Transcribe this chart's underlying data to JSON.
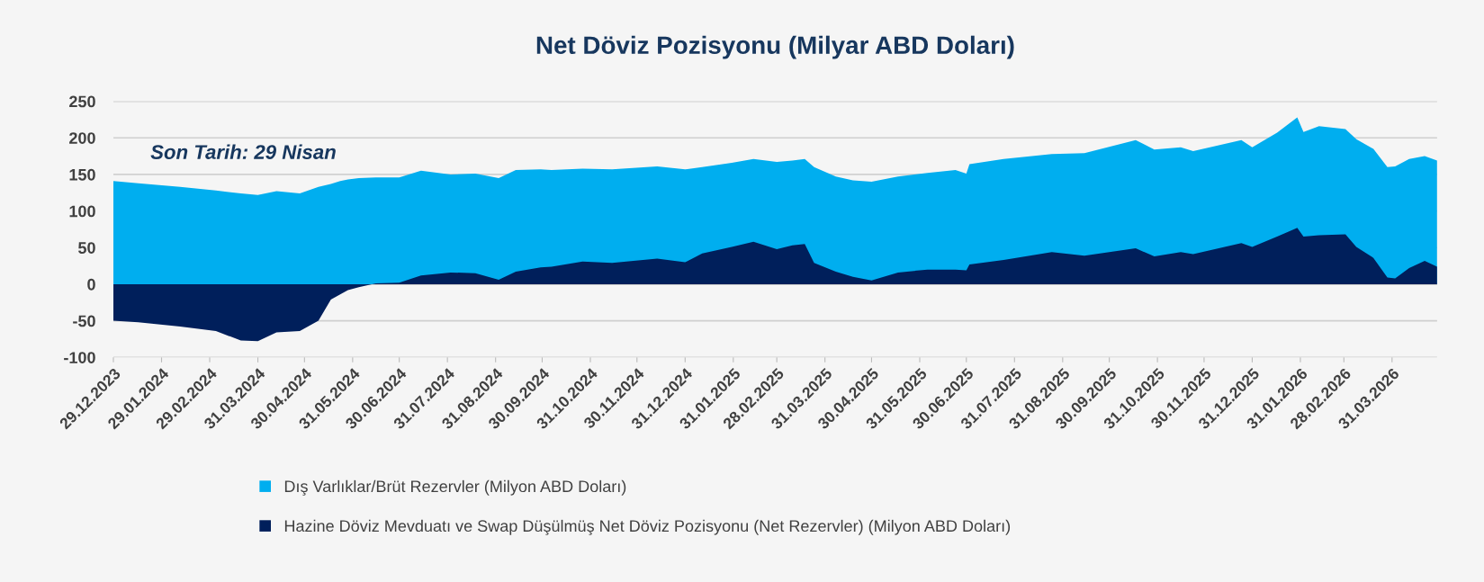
{
  "chart_data": {
    "type": "area",
    "title": "Net Döviz Pozisyonu (Milyar ABD Doları)",
    "annotations": [
      "Son Tarih: 29 Nisan"
    ],
    "x": [
      "2023-12-29",
      "2024-01-14",
      "2024-02-10",
      "2024-03-04",
      "2024-03-20",
      "2024-03-31",
      "2024-04-12",
      "2024-04-27",
      "2024-05-09",
      "2024-05-17",
      "2024-05-23",
      "2024-05-28",
      "2024-06-04",
      "2024-06-15",
      "2024-06-30",
      "2024-07-14",
      "2024-08-02",
      "2024-08-18",
      "2024-09-02",
      "2024-09-13",
      "2024-09-29",
      "2024-10-06",
      "2024-10-26",
      "2024-11-14",
      "2024-12-13",
      "2024-12-31",
      "2025-01-11",
      "2025-01-30",
      "2025-02-13",
      "2025-02-28",
      "2025-03-10",
      "2025-03-18",
      "2025-03-24",
      "2025-04-07",
      "2025-04-18",
      "2025-04-30",
      "2025-05-17",
      "2025-06-05",
      "2025-06-23",
      "2025-06-30",
      "2025-07-02",
      "2025-07-24",
      "2025-08-24",
      "2025-09-14",
      "2025-10-17",
      "2025-10-29",
      "2025-11-15",
      "2025-11-23",
      "2025-12-24",
      "2025-12-31",
      "2026-01-16",
      "2026-01-29",
      "2026-02-02",
      "2026-02-12",
      "2026-03-01",
      "2026-03-08",
      "2026-03-19",
      "2026-03-28",
      "2026-04-02",
      "2026-04-11",
      "2026-04-21",
      "2026-04-29"
    ],
    "series": [
      {
        "name": "Dış Varlıklar/Brüt Rezervler (Milyon ABD Doları)",
        "color": "#00aeef",
        "values": [
          141,
          138,
          133,
          128,
          124,
          122,
          127,
          124,
          133,
          137,
          141,
          143,
          145,
          146,
          146,
          155,
          150,
          151,
          145,
          156,
          157,
          156,
          158,
          157,
          161,
          157,
          160,
          166,
          171,
          167,
          169,
          171,
          160,
          147,
          142,
          140,
          147,
          152,
          156,
          151,
          164,
          171,
          178,
          179,
          197,
          184,
          187,
          182,
          197,
          187,
          207,
          228,
          208,
          216,
          212,
          198,
          185,
          160,
          161,
          171,
          175,
          169
        ]
      },
      {
        "name": "Hazine Döviz Mevduatı ve Swap Düşülmüş Net Döviz Pozisyonu (Net Rezervler) (Milyon ABD Doları)",
        "color": "#001f5b",
        "values": [
          -50,
          -52,
          -58,
          -64,
          -77,
          -78,
          -66,
          -64,
          -50,
          -21,
          -14,
          -8,
          -4,
          1,
          2,
          12,
          16,
          15,
          6,
          17,
          23,
          24,
          31,
          29,
          35,
          30,
          42,
          51,
          58,
          48,
          53,
          55,
          29,
          17,
          10,
          5,
          16,
          20,
          20,
          19,
          27,
          33,
          44,
          39,
          49,
          38,
          44,
          41,
          56,
          51,
          65,
          77,
          65,
          67,
          68,
          51,
          36,
          9,
          8,
          22,
          32,
          24
        ]
      }
    ],
    "xlim": [
      "2023-12-29",
      "2026-04-29"
    ],
    "xticks": [
      {
        "value": "2023-12-29",
        "label": "29.12.2023"
      },
      {
        "value": "2024-01-29",
        "label": "29.01.2024"
      },
      {
        "value": "2024-02-29",
        "label": "29.02.2024"
      },
      {
        "value": "2024-03-31",
        "label": "31.03.2024"
      },
      {
        "value": "2024-04-30",
        "label": "30.04.2024"
      },
      {
        "value": "2024-05-31",
        "label": "31.05.2024"
      },
      {
        "value": "2024-06-30",
        "label": "30.06.2024"
      },
      {
        "value": "2024-07-31",
        "label": "31.07.2024"
      },
      {
        "value": "2024-08-31",
        "label": "31.08.2024"
      },
      {
        "value": "2024-09-30",
        "label": "30.09.2024"
      },
      {
        "value": "2024-10-31",
        "label": "31.10.2024"
      },
      {
        "value": "2024-11-30",
        "label": "30.11.2024"
      },
      {
        "value": "2024-12-31",
        "label": "31.12.2024"
      },
      {
        "value": "2025-01-31",
        "label": "31.01.2025"
      },
      {
        "value": "2025-02-28",
        "label": "28.02.2025"
      },
      {
        "value": "2025-03-31",
        "label": "31.03.2025"
      },
      {
        "value": "2025-04-30",
        "label": "30.04.2025"
      },
      {
        "value": "2025-05-31",
        "label": "31.05.2025"
      },
      {
        "value": "2025-06-30",
        "label": "30.06.2025"
      },
      {
        "value": "2025-07-31",
        "label": "31.07.2025"
      },
      {
        "value": "2025-08-31",
        "label": "31.08.2025"
      },
      {
        "value": "2025-09-30",
        "label": "30.09.2025"
      },
      {
        "value": "2025-10-31",
        "label": "31.10.2025"
      },
      {
        "value": "2025-11-30",
        "label": "30.11.2025"
      },
      {
        "value": "2025-12-31",
        "label": "31.12.2025"
      },
      {
        "value": "2026-01-31",
        "label": "31.01.2026"
      },
      {
        "value": "2026-02-28",
        "label": "28.02.2026"
      },
      {
        "value": "2026-03-31",
        "label": "31.03.2026"
      }
    ],
    "ylim": [
      -100,
      250
    ],
    "yticks": [
      -100,
      -50,
      0,
      50,
      100,
      150,
      200,
      250
    ],
    "grid": "y",
    "legend": "bottom"
  }
}
